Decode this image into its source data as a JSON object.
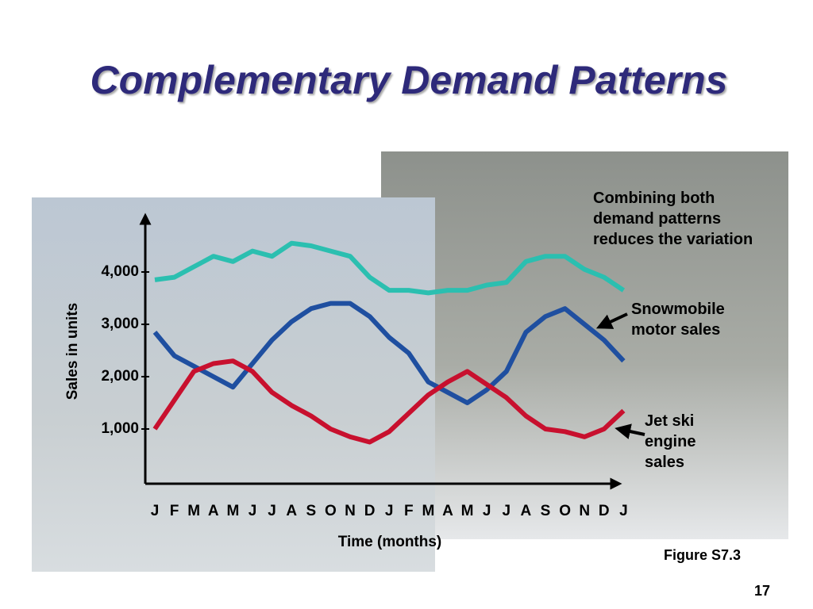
{
  "title": "Complementary Demand Patterns",
  "chart_data": {
    "type": "line",
    "x_label": "Time (months)",
    "y_label": "Sales in units",
    "categories": [
      "J",
      "F",
      "M",
      "A",
      "M",
      "J",
      "J",
      "A",
      "S",
      "O",
      "N",
      "D",
      "J",
      "F",
      "M",
      "A",
      "M",
      "J",
      "J",
      "A",
      "S",
      "O",
      "N",
      "D",
      "J"
    ],
    "series": [
      {
        "name": "Combining both demand patterns reduces the variation",
        "color": "#2bbfb0",
        "values": [
          3850,
          3900,
          4100,
          4300,
          4200,
          4400,
          4300,
          4550,
          4500,
          4400,
          4300,
          3900,
          3650,
          3650,
          3600,
          3650,
          3650,
          3750,
          3800,
          4200,
          4300,
          4300,
          4050,
          3900,
          3650
        ]
      },
      {
        "name": "Snowmobile motor sales",
        "color": "#1f4fa0",
        "values": [
          2850,
          2400,
          2200,
          2000,
          1800,
          2250,
          2700,
          3050,
          3300,
          3400,
          3400,
          3150,
          2750,
          2450,
          1900,
          1700,
          1500,
          1750,
          2100,
          2850,
          3150,
          3300,
          3000,
          2700,
          2300
        ]
      },
      {
        "name": "Jet ski engine sales",
        "color": "#c8102e",
        "values": [
          1000,
          1550,
          2100,
          2250,
          2300,
          2100,
          1700,
          1450,
          1250,
          1000,
          850,
          750,
          950,
          1300,
          1650,
          1900,
          2100,
          1850,
          1600,
          1250,
          1000,
          950,
          850,
          1000,
          1350
        ]
      }
    ],
    "ylim": [
      0,
      5000
    ],
    "yticks": [
      {
        "value": 1000,
        "label": "1,000"
      },
      {
        "value": 2000,
        "label": "2,000"
      },
      {
        "value": 3000,
        "label": "3,000"
      },
      {
        "value": 4000,
        "label": "4,000"
      }
    ],
    "figure_label": "Figure S7.3"
  },
  "page_number": 17
}
